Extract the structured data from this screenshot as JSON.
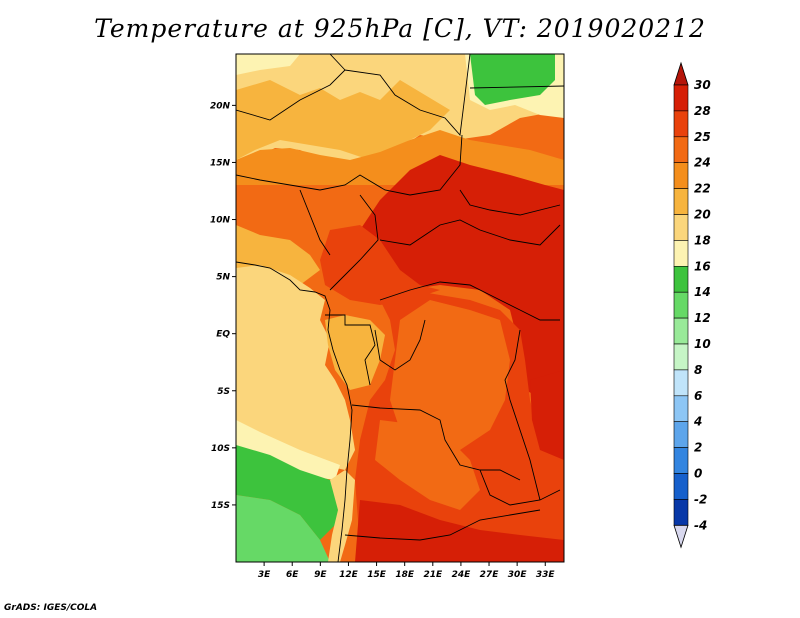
{
  "title": "Temperature at 925hPa [C], VT: 2019020212",
  "credit": "GrADS: IGES/COLA",
  "map": {
    "lat_labels": [
      "20N",
      "15N",
      "10N",
      "5N",
      "EQ",
      "5S",
      "10S",
      "15S"
    ],
    "lon_labels": [
      "3E",
      "6E",
      "9E",
      "12E",
      "15E",
      "18E",
      "21E",
      "24E",
      "27E",
      "30E",
      "33E"
    ],
    "lat_range": [
      -20,
      24.5
    ],
    "lon_range": [
      0,
      35
    ]
  },
  "colorbar": {
    "unit": "C",
    "levels": [
      "30",
      "28",
      "25",
      "24",
      "22",
      "20",
      "18",
      "16",
      "14",
      "12",
      "10",
      "8",
      "6",
      "4",
      "2",
      "0",
      "-2",
      "-4"
    ],
    "colors": [
      "#d61f06",
      "#e9420c",
      "#f26a14",
      "#f48e1c",
      "#f7b43e",
      "#fbd67c",
      "#fdf3b2",
      "#3dc33d",
      "#66d966",
      "#99ea99",
      "#c6f5c6",
      "#c0e4fa",
      "#8dc6f5",
      "#5da5eb",
      "#3385e0",
      "#1660cc",
      "#0838a8",
      "#041470"
    ],
    "top_arrow_color": "#b5150a",
    "bottom_arrow_color": "#d8d8ee"
  },
  "field_colors": {
    "deep_red": "#d61f06",
    "red_orange": "#e9420c",
    "orange": "#f26a14",
    "light_orange": "#f48e1c",
    "amber": "#f7b43e",
    "sand": "#fbd67c",
    "cream": "#fdf3b2",
    "green": "#3dc33d",
    "light_green": "#66d966"
  }
}
